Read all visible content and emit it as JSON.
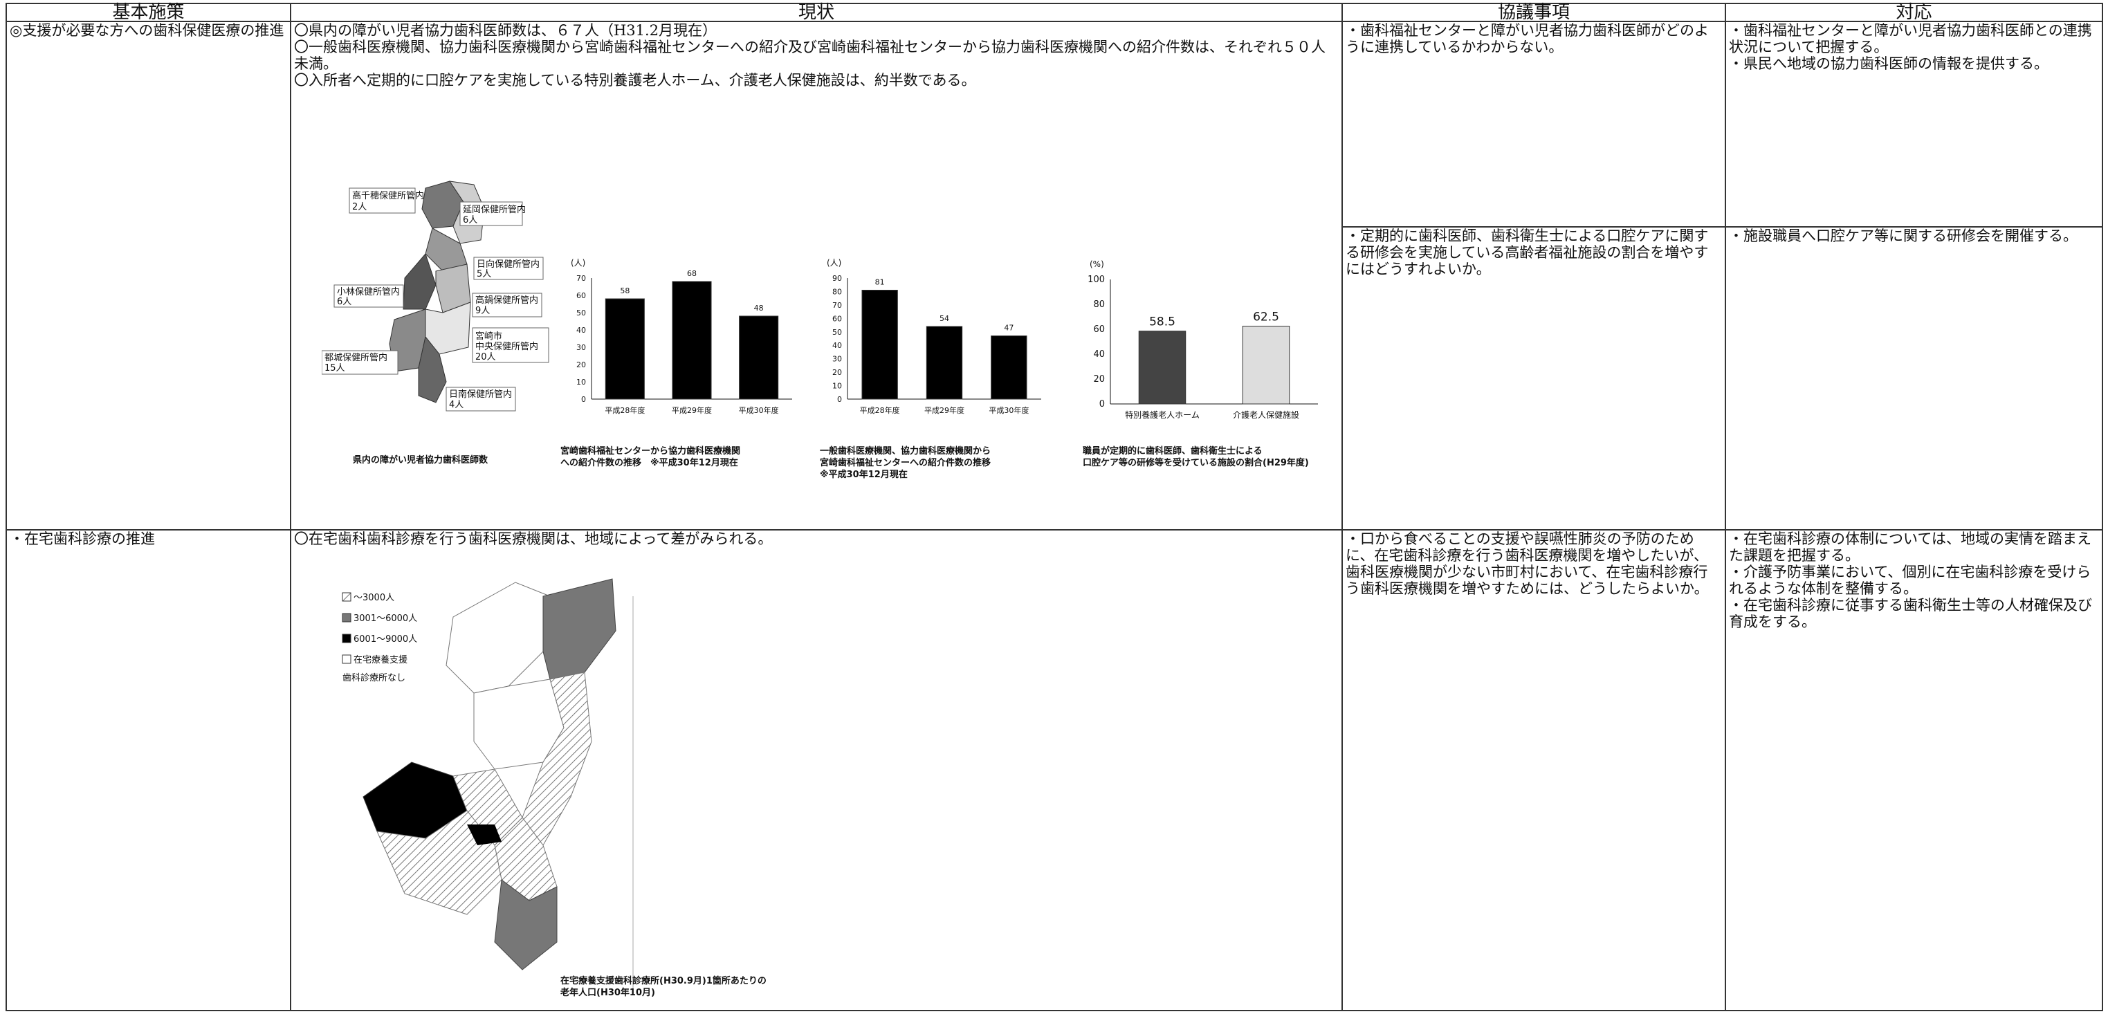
{
  "headers": [
    "基本施策",
    "現状",
    "協議事項",
    "対応"
  ],
  "row1": {
    "policy": "◎支援が必要な方への歯科保健医療の推進",
    "status_lines": [
      "〇県内の障がい児者協力歯科医師数は、６７人（H31.2月現在）",
      "〇一般歯科医療機関、協力歯科医療機関から宮崎歯科福祉センターへの紹介及び宮崎歯科福祉センターから協力歯科医療機関への紹介件数は、それぞれ５０人未満。",
      "〇入所者へ定期的に口腔ケアを実施している特別養護老人ホーム、介護老人保健施設は、約半数である。"
    ],
    "issue_top": "・歯科福祉センターと障がい児者協力歯科医師がどのように連携しているかわからない。",
    "issue_bottom": "・定期的に歯科医師、歯科衛生士による口腔ケアに関する研修会を実施している高齢者福祉施設の割合を増やすにはどうすれよいか。",
    "response_top": "・歯科福祉センターと障がい児者協力歯科医師との連携状況について把握する。\n・県民へ地域の協力歯科医師の情報を提供する。",
    "response_bottom": "・施設職員へ口腔ケア等に関する研修会を開催する。",
    "map": {
      "regions": [
        {
          "name": "高千穂保健所管内",
          "count": "2人"
        },
        {
          "name": "延岡保健所管内",
          "count": "6人"
        },
        {
          "name": "日向保健所管内",
          "count": "5人"
        },
        {
          "name": "小林保健所管内",
          "count": "6人"
        },
        {
          "name": "高鍋保健所管内",
          "count": "9人"
        },
        {
          "name": "宮崎市\n中央保健所管内",
          "count": "20人"
        },
        {
          "name": "都城保健所管内",
          "count": "15人"
        },
        {
          "name": "日南保健所管内",
          "count": "4人"
        }
      ],
      "caption": "県内の障がい児者協力歯科医師数"
    },
    "chart1_caption": "宮崎歯科福祉センターから協力歯科医療機関\nへの紹介件数の推移　※平成30年12月現在",
    "chart2_caption": "一般歯科医療機関、協力歯科医療機関から\n宮崎歯科福祉センターへの紹介件数の推移\n※平成30年12月現在",
    "chart3_caption": "職員が定期的に歯科医師、歯科衛生士による\n口腔ケア等の研修等を受けている施設の割合(H29年度)"
  },
  "row2": {
    "policy": "・在宅歯科診療の推進",
    "status": "〇在宅歯科歯科診療を行う歯科医療機関は、地域によって差がみられる。",
    "issue": "・口から食べることの支援や誤嚥性肺炎の予防のために、在宅歯科診療を行う歯科医療機関を増やしたいが、歯科医療機関が少ない市町村において、在宅歯科診療行う歯科医療機関を増やすためには、どうしたらよいか。",
    "response": "・在宅歯科診療の体制については、地域の実情を踏まえた課題を把握する。\n・介護予防事業において、個別に在宅歯科診療を受けられるような体制を整備する。\n・在宅歯科診療に従事する歯科衛生士等の人材確保及び育成をする。",
    "map_legend": [
      "～3000人",
      "3001～6000人",
      "6001～9000人",
      "在宅療養支援",
      "歯科診療所なし"
    ],
    "map_caption": "在宅療養支援歯科診療所(H30.9月)1箇所あたりの\n老年人口(H30年10月)"
  },
  "chart_data": [
    {
      "type": "bar",
      "ylabel": "(人)",
      "categories": [
        "平成28年度",
        "平成29年度",
        "平成30年度"
      ],
      "values": [
        58,
        68,
        48
      ],
      "ylim": [
        0,
        70
      ],
      "yticks": [
        0,
        10,
        20,
        30,
        40,
        50,
        60,
        70
      ],
      "color": "#000000"
    },
    {
      "type": "bar",
      "ylabel": "(人)",
      "categories": [
        "平成28年度",
        "平成29年度",
        "平成30年度"
      ],
      "values": [
        81,
        54,
        47
      ],
      "ylim": [
        0,
        90
      ],
      "yticks": [
        0,
        10,
        20,
        30,
        40,
        50,
        60,
        70,
        80,
        90
      ],
      "color": "#000000"
    },
    {
      "type": "bar",
      "ylabel": "(%)",
      "categories": [
        "特別養護老人ホーム",
        "介護老人保健施設"
      ],
      "values": [
        58.5,
        62.5
      ],
      "ylim": [
        0,
        100
      ],
      "yticks": [
        0,
        20,
        40,
        60,
        80,
        100
      ],
      "colors": [
        "#444444",
        "#dddddd"
      ]
    }
  ]
}
